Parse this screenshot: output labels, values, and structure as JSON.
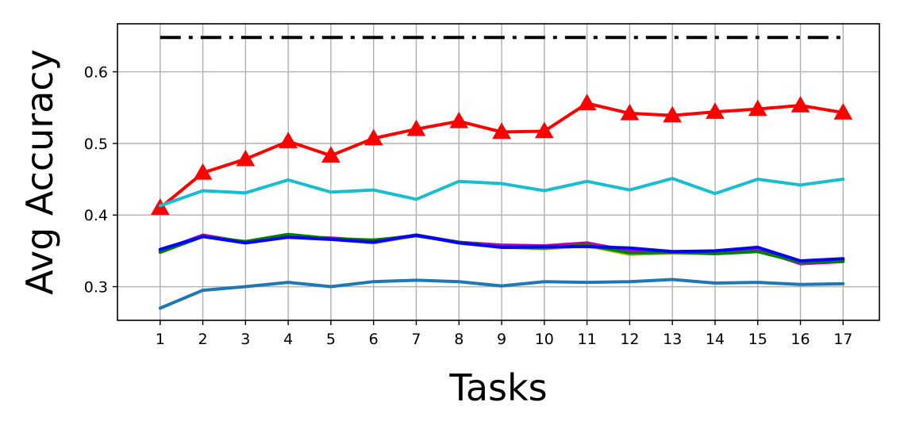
{
  "chart_data": {
    "type": "line",
    "title": "",
    "xlabel": "Tasks",
    "ylabel": "Avg Accuracy",
    "x": [
      1,
      2,
      3,
      4,
      5,
      6,
      7,
      8,
      9,
      10,
      11,
      12,
      13,
      14,
      15,
      16,
      17
    ],
    "xticks": [
      "1",
      "2",
      "3",
      "4",
      "5",
      "6",
      "7",
      "8",
      "9",
      "10",
      "11",
      "12",
      "13",
      "14",
      "15",
      "16",
      "17"
    ],
    "yticks": [
      "0.3",
      "0.4",
      "0.5",
      "0.6"
    ],
    "xlim": [
      0.0,
      17.85
    ],
    "ylim": [
      0.253,
      0.667
    ],
    "grid": true,
    "legend": "none",
    "series": [
      {
        "color": "#000000",
        "style": "dashdot",
        "marker": "none",
        "values": [
          0.648,
          0.648,
          0.648,
          0.648,
          0.648,
          0.648,
          0.648,
          0.648,
          0.648,
          0.648,
          0.648,
          0.648,
          0.648,
          0.648,
          0.648,
          0.648,
          0.648
        ]
      },
      {
        "color": "#ff0000",
        "style": "solid",
        "marker": "triangle",
        "values": [
          0.41,
          0.459,
          0.478,
          0.503,
          0.483,
          0.507,
          0.52,
          0.531,
          0.516,
          0.517,
          0.556,
          0.542,
          0.539,
          0.544,
          0.548,
          0.553,
          0.543
        ]
      },
      {
        "color": "#17becf",
        "style": "solid",
        "marker": "none",
        "values": [
          0.413,
          0.434,
          0.431,
          0.449,
          0.432,
          0.435,
          0.422,
          0.447,
          0.444,
          0.434,
          0.447,
          0.435,
          0.451,
          0.43,
          0.45,
          0.442,
          0.45
        ]
      },
      {
        "color": "#bcbd22",
        "style": "solid",
        "marker": "none",
        "values": [
          0.35,
          0.37,
          0.362,
          0.371,
          0.366,
          0.361,
          0.371,
          0.362,
          0.356,
          0.353,
          0.357,
          0.345,
          0.347,
          0.347,
          0.35,
          0.333,
          0.336
        ]
      },
      {
        "color": "#bf00bf",
        "style": "solid",
        "marker": "none",
        "values": [
          0.35,
          0.372,
          0.362,
          0.37,
          0.368,
          0.364,
          0.372,
          0.362,
          0.358,
          0.357,
          0.361,
          0.35,
          0.348,
          0.348,
          0.352,
          0.332,
          0.335
        ]
      },
      {
        "color": "#008000",
        "style": "solid",
        "marker": "none",
        "values": [
          0.348,
          0.37,
          0.363,
          0.373,
          0.367,
          0.365,
          0.371,
          0.362,
          0.355,
          0.354,
          0.358,
          0.347,
          0.348,
          0.346,
          0.349,
          0.334,
          0.336
        ]
      },
      {
        "color": "#0000ff",
        "style": "solid",
        "marker": "none",
        "values": [
          0.352,
          0.37,
          0.361,
          0.369,
          0.366,
          0.362,
          0.372,
          0.361,
          0.355,
          0.356,
          0.356,
          0.354,
          0.349,
          0.35,
          0.355,
          0.336,
          0.339
        ]
      },
      {
        "color": "#1f77b4",
        "style": "solid",
        "marker": "none",
        "values": [
          0.27,
          0.295,
          0.3,
          0.306,
          0.3,
          0.307,
          0.309,
          0.307,
          0.301,
          0.307,
          0.306,
          0.307,
          0.31,
          0.305,
          0.306,
          0.303,
          0.304
        ]
      }
    ]
  }
}
